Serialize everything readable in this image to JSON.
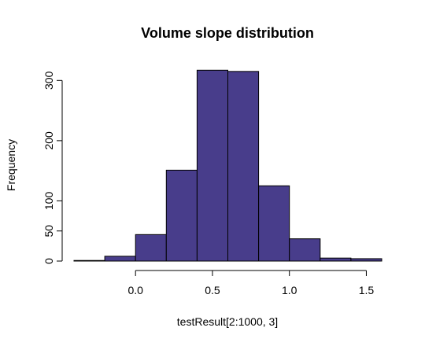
{
  "chart_data": {
    "type": "bar",
    "title": "Volume slope distribution",
    "xlabel": "testResult[2:1000, 3]",
    "ylabel": "Frequency",
    "bar_color": "#483D8B",
    "edge_color": "#000000",
    "bin_edges": [
      -0.4,
      -0.2,
      0.0,
      0.2,
      0.4,
      0.6,
      0.8,
      1.0,
      1.2,
      1.4,
      1.6
    ],
    "values": [
      1,
      8,
      44,
      151,
      317,
      315,
      125,
      37,
      5,
      4
    ],
    "xlim": [
      -0.4,
      1.6
    ],
    "ylim": [
      0,
      320
    ],
    "x_ticks": [
      0.0,
      0.5,
      1.0,
      1.5
    ],
    "x_tick_labels": [
      "0.0",
      "0.5",
      "1.0",
      "1.5"
    ],
    "y_ticks": [
      0,
      50,
      100,
      200,
      300
    ],
    "y_tick_labels": [
      "0",
      "50",
      "100",
      "200",
      "300"
    ],
    "grid": false,
    "legend": "none"
  }
}
